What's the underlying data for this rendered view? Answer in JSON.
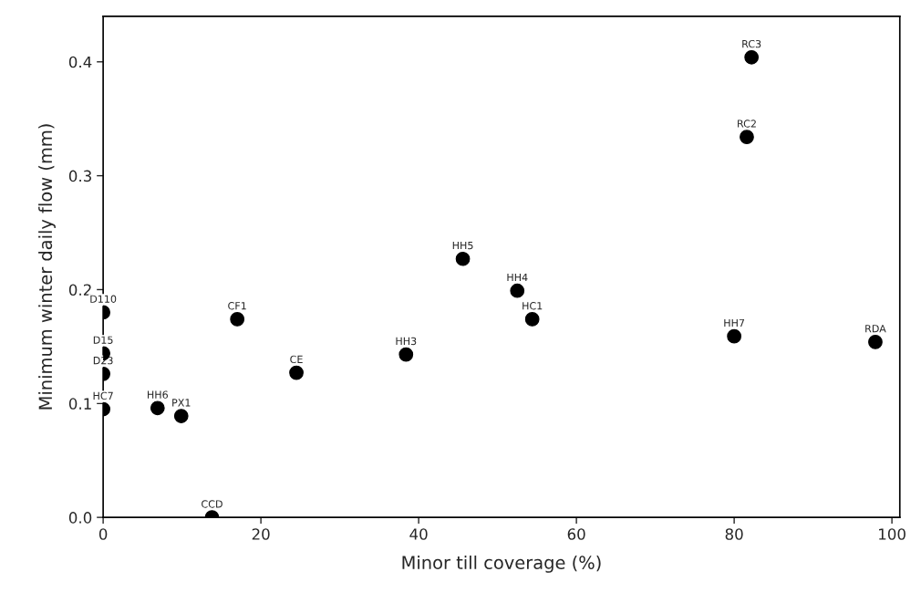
{
  "chart_data": {
    "type": "scatter",
    "xlabel": "Minor till coverage (%)",
    "ylabel": "Minimum winter daily flow (mm)",
    "x": [
      0,
      0,
      0,
      0,
      6.9,
      9.9,
      17.0,
      24.5,
      13.8,
      45.6,
      52.5,
      54.4,
      38.4,
      82.2,
      81.6,
      80.0,
      97.9
    ],
    "values": [
      0.18,
      0.144,
      0.126,
      0.095,
      0.096,
      0.089,
      0.174,
      0.127,
      0.0,
      0.227,
      0.199,
      0.174,
      0.143,
      0.404,
      0.334,
      0.159,
      0.154
    ],
    "color": "#000000",
    "marker": "circle",
    "grid": false,
    "legend": false,
    "xlim": [
      0,
      101
    ],
    "ylim": [
      0,
      0.44
    ],
    "xticks": [
      0,
      20,
      40,
      60,
      80,
      100
    ],
    "yticks": [
      {
        "value": 0,
        "label": "0.0"
      },
      {
        "value": 0.1,
        "label": "0.1"
      },
      {
        "value": 0.2,
        "label": "0.2"
      },
      {
        "value": 0.3,
        "label": "0.3"
      },
      {
        "value": 0.4,
        "label": "0.4"
      }
    ],
    "annotations": [
      {
        "text": "D110",
        "x": 0,
        "y": 0.18
      },
      {
        "text": "D15",
        "x": 0,
        "y": 0.144
      },
      {
        "text": "D23",
        "x": 0,
        "y": 0.126
      },
      {
        "text": "HC7",
        "x": 0,
        "y": 0.095
      },
      {
        "text": "HH6",
        "x": 6.9,
        "y": 0.096
      },
      {
        "text": "PX1",
        "x": 9.9,
        "y": 0.089
      },
      {
        "text": "CF1",
        "x": 17.0,
        "y": 0.174
      },
      {
        "text": "CE",
        "x": 24.5,
        "y": 0.127
      },
      {
        "text": "CCD",
        "x": 13.8,
        "y": 0.0
      },
      {
        "text": "HH5",
        "x": 45.6,
        "y": 0.227
      },
      {
        "text": "HH4",
        "x": 52.5,
        "y": 0.199
      },
      {
        "text": "HC1",
        "x": 54.4,
        "y": 0.174
      },
      {
        "text": "HH3",
        "x": 38.4,
        "y": 0.143
      },
      {
        "text": "RC3",
        "x": 82.2,
        "y": 0.404
      },
      {
        "text": "RC2",
        "x": 81.6,
        "y": 0.334
      },
      {
        "text": "HH7",
        "x": 80.0,
        "y": 0.159
      },
      {
        "text": "RDA",
        "x": 97.9,
        "y": 0.154
      }
    ]
  }
}
